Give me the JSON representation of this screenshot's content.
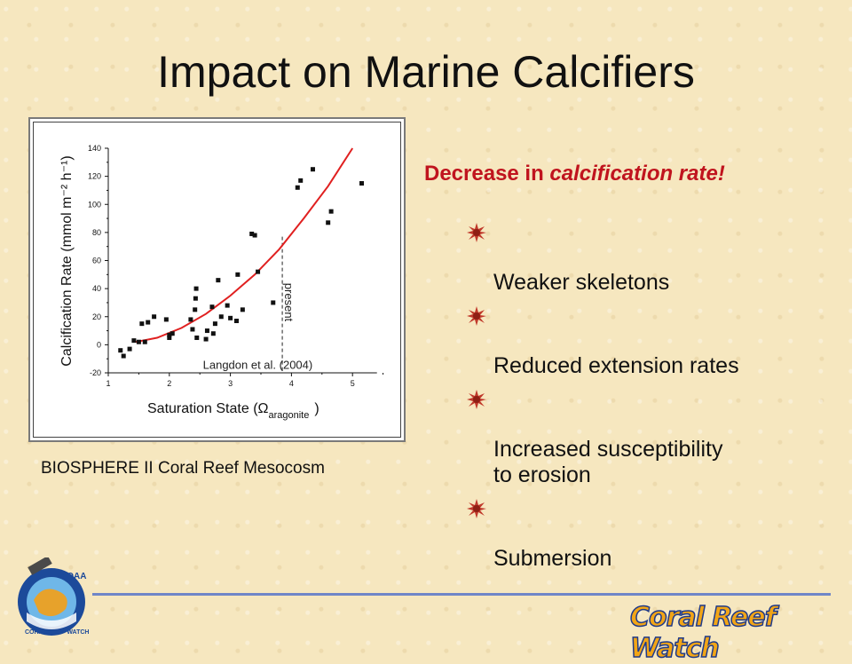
{
  "slide": {
    "title": "Impact on Marine Calcifiers",
    "caption": "BIOSPHERE II Coral Reef Mesocosm",
    "headline_plain": "Decrease in ",
    "headline_emph": "calcification rate!",
    "bullets": [
      "Weaker skeletons",
      "Reduced extension rates",
      "Increased susceptibility\nto erosion",
      "Submersion"
    ],
    "logo_text": "Coral Reef Watch",
    "noaa_logo_text": "NOAA",
    "noaa_logo_arc_text": "CORAL REEF WATCH",
    "colors": {
      "headline": "#c0141e",
      "fit_curve": "#e02020",
      "footer_line": "#6f86c8",
      "logo_fill": "#f2a516",
      "logo_stroke": "#1f3a8a"
    }
  },
  "chart_data": {
    "type": "scatter",
    "xlabel_prefix": "Saturation State (",
    "xlabel_symbol": "Ω",
    "xlabel_sub": "aragonite",
    "xlabel_suffix": ")",
    "ylabel": "Calcification Rate (mmol m⁻² h⁻¹)",
    "xlim": [
      1,
      6
    ],
    "ylim": [
      -20,
      140
    ],
    "xticks": [
      "1",
      "2",
      "3",
      "4",
      "5"
    ],
    "yticks": [
      "-20",
      "0",
      "20",
      "40",
      "60",
      "80",
      "100",
      "120",
      "140"
    ],
    "annotation_present": "present",
    "annotation_present_x": 3.85,
    "annotation_citation": "Langdon et al. (2004)",
    "points": [
      [
        1.2,
        -4
      ],
      [
        1.25,
        -8
      ],
      [
        1.35,
        -3
      ],
      [
        1.42,
        3
      ],
      [
        1.5,
        2
      ],
      [
        1.55,
        15
      ],
      [
        1.6,
        2
      ],
      [
        1.65,
        16
      ],
      [
        1.75,
        20
      ],
      [
        1.95,
        18
      ],
      [
        2.0,
        7
      ],
      [
        2.0,
        5
      ],
      [
        2.05,
        8
      ],
      [
        2.35,
        18
      ],
      [
        2.38,
        11
      ],
      [
        2.42,
        25
      ],
      [
        2.43,
        33
      ],
      [
        2.44,
        40
      ],
      [
        2.45,
        5
      ],
      [
        2.6,
        4
      ],
      [
        2.62,
        10
      ],
      [
        2.7,
        27
      ],
      [
        2.72,
        8
      ],
      [
        2.75,
        15
      ],
      [
        2.8,
        46
      ],
      [
        2.85,
        20
      ],
      [
        2.95,
        28
      ],
      [
        3.0,
        19
      ],
      [
        3.1,
        17
      ],
      [
        3.12,
        50
      ],
      [
        3.2,
        25
      ],
      [
        3.35,
        79
      ],
      [
        3.4,
        78
      ],
      [
        3.45,
        52
      ],
      [
        3.7,
        30
      ],
      [
        4.1,
        112
      ],
      [
        4.15,
        117
      ],
      [
        4.35,
        125
      ],
      [
        4.6,
        87
      ],
      [
        4.65,
        95
      ],
      [
        5.15,
        115
      ]
    ],
    "fit_curve": [
      [
        1.45,
        2
      ],
      [
        1.8,
        5
      ],
      [
        2.2,
        12
      ],
      [
        2.6,
        22
      ],
      [
        3.0,
        35
      ],
      [
        3.4,
        50
      ],
      [
        3.8,
        68
      ],
      [
        4.2,
        90
      ],
      [
        4.6,
        113
      ],
      [
        5.0,
        140
      ]
    ]
  }
}
